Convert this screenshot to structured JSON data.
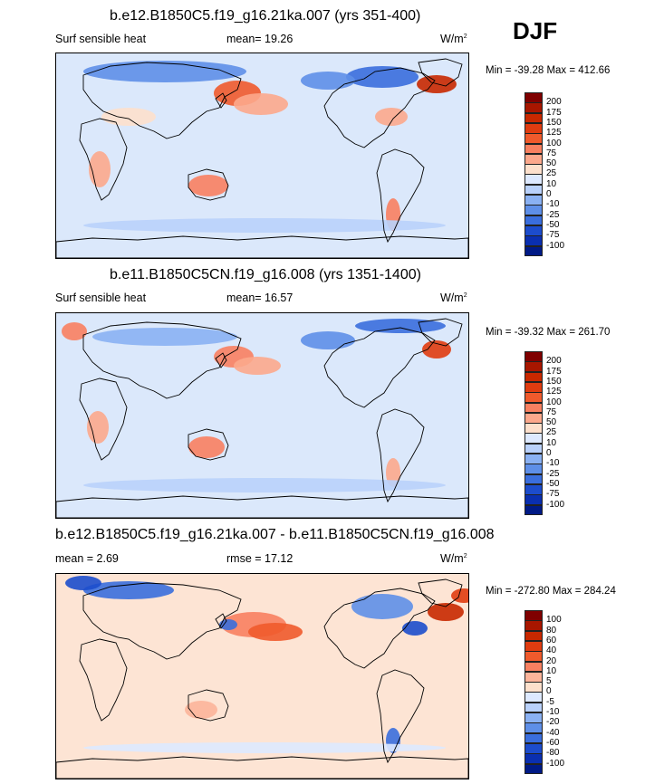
{
  "season": "DJF",
  "panels": [
    {
      "title": "b.e12.B1850C5.f19_g16.21ka.007 (yrs 351-400)",
      "left_label": "Surf sensible heat",
      "center_label": "mean=  19.26",
      "units_base": "W/m",
      "units_exp": "2",
      "minmax": "Min = -39.28 Max = 412.66",
      "colorbar_ticks": [
        "200",
        "175",
        "150",
        "125",
        "100",
        "75",
        "50",
        "25",
        "10",
        "0",
        "-10",
        "-25",
        "-50",
        "-75",
        "-100"
      ]
    },
    {
      "title": "b.e11.B1850C5CN.f19_g16.008 (yrs 1351-1400)",
      "left_label": "Surf sensible heat",
      "center_label": "mean=  16.57",
      "units_base": "W/m",
      "units_exp": "2",
      "minmax": "Min = -39.32 Max = 261.70",
      "colorbar_ticks": [
        "200",
        "175",
        "150",
        "125",
        "100",
        "75",
        "50",
        "25",
        "10",
        "0",
        "-10",
        "-25",
        "-50",
        "-75",
        "-100"
      ]
    },
    {
      "title": "b.e12.B1850C5.f19_g16.21ka.007 - b.e11.B1850C5CN.f19_g16.008",
      "left_label": "mean =   2.69",
      "center_label": "rmse =  17.12",
      "units_base": "W/m",
      "units_exp": "2",
      "minmax": "Min = -272.80 Max = 284.24",
      "colorbar_ticks": [
        "100",
        "80",
        "60",
        "40",
        "20",
        "10",
        "5",
        "0",
        "-5",
        "-10",
        "-20",
        "-40",
        "-60",
        "-80",
        "-100"
      ]
    }
  ],
  "colors": {
    "abs_scale": [
      "#7f0000",
      "#a81600",
      "#c82800",
      "#e03c10",
      "#f05a2c",
      "#f88060",
      "#fca88c",
      "#fde0cc",
      "#dde9ff",
      "#b9d1fb",
      "#8ab1f3",
      "#5e8fe8",
      "#3a6edd",
      "#1c4ccc",
      "#0a2fb0",
      "#001a86"
    ],
    "diff_scale": [
      "#7f0000",
      "#a81600",
      "#c82800",
      "#e03c10",
      "#f05a2c",
      "#f88060",
      "#fcb49a",
      "#fde0cc",
      "#dde9ff",
      "#b9d1fb",
      "#8ab1f3",
      "#5e8fe8",
      "#3a6edd",
      "#1c4ccc",
      "#0a2fb0",
      "#001a86"
    ],
    "panel_backgrounds": [
      "#dbe8fb",
      "#dbe8fb",
      "#fde4d4"
    ]
  }
}
